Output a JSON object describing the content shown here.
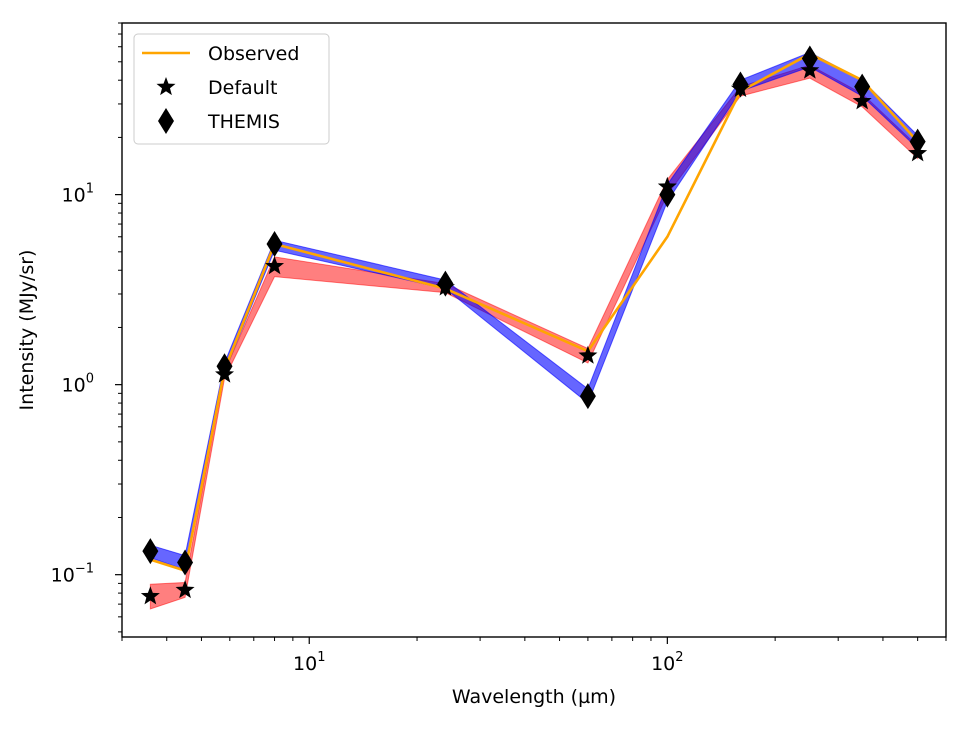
{
  "chart_data": {
    "type": "line",
    "xscale": "log",
    "yscale": "log",
    "xlabel": "Wavelength (µm)",
    "ylabel": "Intensity (MJy/sr)",
    "xlim": [
      3.0,
      600
    ],
    "ylim": [
      0.047,
      80
    ],
    "x_ticks": [
      {
        "value": 10,
        "label": "10",
        "exp": "1"
      },
      {
        "value": 100,
        "label": "10",
        "exp": "2"
      }
    ],
    "y_ticks": [
      {
        "value": 0.1,
        "label": "10",
        "exp": "−1"
      },
      {
        "value": 1,
        "label": "10",
        "exp": "0"
      },
      {
        "value": 10,
        "label": "10",
        "exp": "1"
      }
    ],
    "legend": {
      "placement": "top-left",
      "entries": [
        {
          "label": "Observed",
          "marker": "line",
          "color": "#ffa500"
        },
        {
          "label": "Default",
          "marker": "star",
          "color": "#000000"
        },
        {
          "label": "THEMIS",
          "marker": "thin_diamond",
          "color": "#000000"
        }
      ]
    },
    "x": [
      3.6,
      4.5,
      5.8,
      8.0,
      24,
      60,
      100,
      160,
      250,
      350,
      500
    ],
    "series": [
      {
        "name": "Observed",
        "kind": "line",
        "color": "#ffa500",
        "values": [
          0.12,
          0.105,
          1.2,
          5.5,
          3.2,
          1.5,
          6.0,
          35,
          55,
          40,
          19
        ]
      },
      {
        "name": "Default",
        "kind": "markers",
        "marker": "star",
        "color": "#000000",
        "values": [
          0.077,
          0.083,
          1.13,
          4.2,
          3.25,
          1.42,
          11.0,
          36,
          45,
          31,
          16.5
        ]
      },
      {
        "name": "THEMIS",
        "kind": "markers",
        "marker": "thin_diamond",
        "color": "#000000",
        "values": [
          0.133,
          0.116,
          1.25,
          5.5,
          3.4,
          0.87,
          10.0,
          38,
          52,
          37,
          19
        ]
      }
    ],
    "bands": [
      {
        "color": "#ff0000",
        "opacity": 0.5,
        "lower": [
          0.066,
          0.076,
          1.08,
          3.7,
          3.05,
          1.3,
          10.0,
          33,
          41,
          29,
          15.5
        ],
        "upper": [
          0.089,
          0.091,
          1.17,
          4.7,
          3.4,
          1.55,
          12.0,
          37,
          48,
          34,
          18
        ]
      },
      {
        "color": "#0000ff",
        "opacity": 0.6,
        "lower": [
          0.123,
          0.106,
          1.17,
          5.1,
          3.2,
          0.8,
          9.2,
          35,
          47,
          33,
          17.5
        ],
        "upper": [
          0.143,
          0.126,
          1.3,
          5.75,
          3.55,
          0.95,
          11.3,
          40,
          56,
          40,
          20.5
        ]
      }
    ]
  }
}
